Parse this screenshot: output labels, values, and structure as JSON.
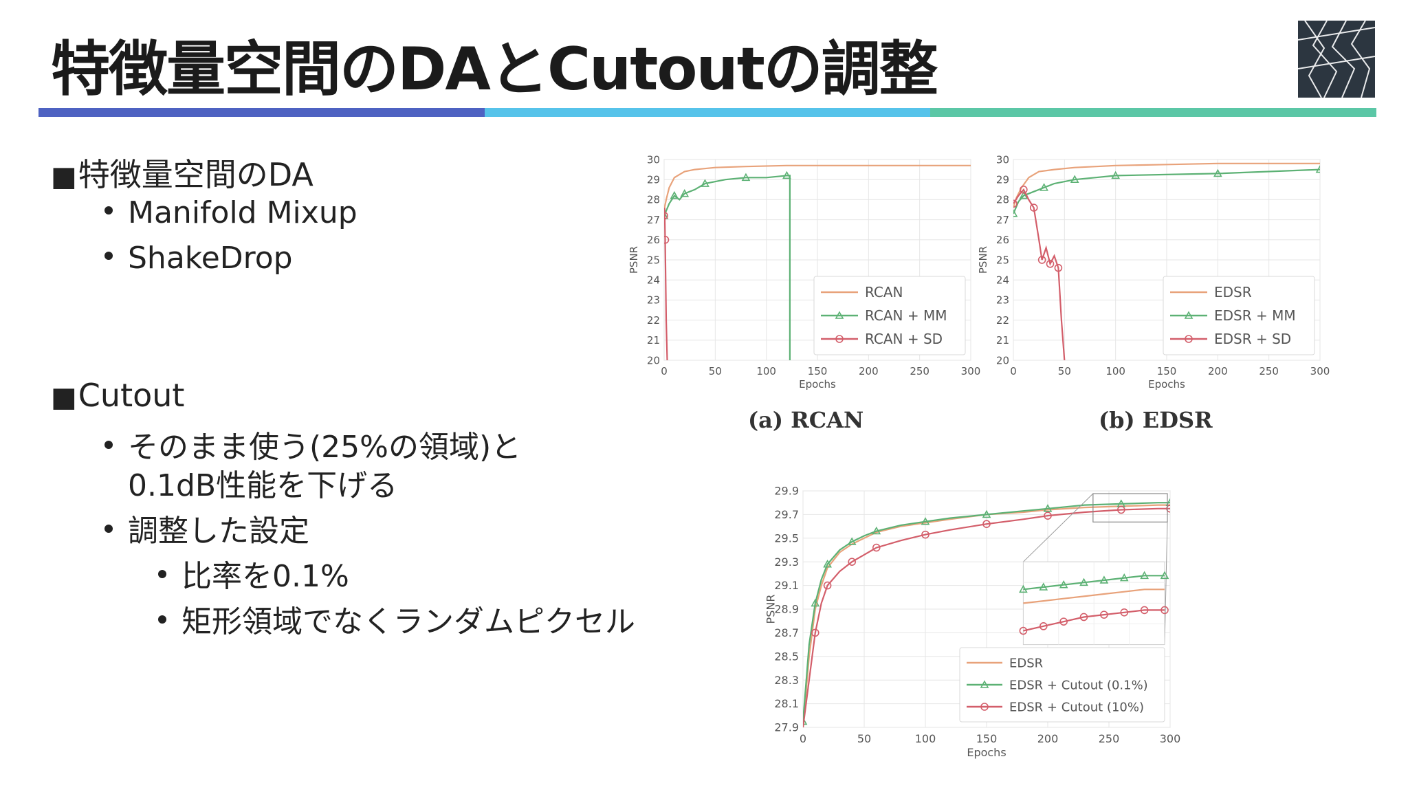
{
  "slide": {
    "title": "特徴量空間のDAとCutoutの調整",
    "colors": {
      "accent_1": "#4E62C2",
      "accent_2": "#56C3EA",
      "accent_3": "#5BC7A6",
      "logo_bg": "#2C3640"
    },
    "logo_icon": "lattice-logo-icon",
    "sections": [
      {
        "marker": "■",
        "heading": "特徴量空間のDA",
        "items": [
          {
            "text": "Manifold Mixup"
          },
          {
            "text": "ShakeDrop"
          }
        ]
      },
      {
        "marker": "■",
        "heading": "Cutout",
        "items": [
          {
            "text_line1": "そのまま使う(25%の領域)と",
            "text_line2": "0.1dB性能を下げる"
          },
          {
            "text": "調整した設定",
            "subitems": [
              {
                "text": "比率を0.1%"
              },
              {
                "text": "矩形領域でなくランダムピクセル"
              }
            ]
          }
        ]
      }
    ]
  },
  "chart_data": [
    {
      "type": "line",
      "caption": "(a) RCAN",
      "xlabel": "Epochs",
      "ylabel": "PSNR",
      "xlim": [
        0,
        300
      ],
      "ylim": [
        20,
        30
      ],
      "xticks": [
        0,
        50,
        100,
        150,
        200,
        250,
        300
      ],
      "yticks": [
        20,
        21,
        22,
        23,
        24,
        25,
        26,
        27,
        28,
        29,
        30
      ],
      "grid": true,
      "legend_position": "lower right",
      "series": [
        {
          "name": "RCAN",
          "color": "#E8A27A",
          "marker": "none",
          "x": [
            0,
            2,
            5,
            10,
            20,
            30,
            50,
            80,
            120,
            200,
            300
          ],
          "y": [
            27.5,
            28.0,
            28.6,
            29.1,
            29.4,
            29.5,
            29.6,
            29.65,
            29.7,
            29.7,
            29.7
          ]
        },
        {
          "name": "RCAN + MM",
          "color": "#5CB174",
          "marker": "triangle",
          "x": [
            0,
            5,
            10,
            15,
            20,
            30,
            40,
            60,
            80,
            100,
            120,
            123,
            123
          ],
          "y": [
            27.2,
            27.8,
            28.2,
            28.0,
            28.3,
            28.5,
            28.8,
            29.0,
            29.1,
            29.1,
            29.2,
            29.2,
            20
          ]
        },
        {
          "name": "RCAN + SD",
          "color": "#D35E6A",
          "marker": "circle",
          "x": [
            0,
            0.5,
            1,
            2,
            3
          ],
          "y": [
            27.2,
            27.6,
            26.0,
            22.0,
            20
          ]
        }
      ]
    },
    {
      "type": "line",
      "caption": "(b) EDSR",
      "xlabel": "Epochs",
      "ylabel": "PSNR",
      "xlim": [
        0,
        300
      ],
      "ylim": [
        20,
        30
      ],
      "xticks": [
        0,
        50,
        100,
        150,
        200,
        250,
        300
      ],
      "yticks": [
        20,
        21,
        22,
        23,
        24,
        25,
        26,
        27,
        28,
        29,
        30
      ],
      "grid": true,
      "legend_position": "lower right",
      "series": [
        {
          "name": "EDSR",
          "color": "#E8A27A",
          "marker": "none",
          "x": [
            0,
            3,
            8,
            15,
            25,
            40,
            60,
            100,
            150,
            200,
            250,
            300
          ],
          "y": [
            27.6,
            28.1,
            28.6,
            29.1,
            29.4,
            29.5,
            29.6,
            29.7,
            29.75,
            29.8,
            29.8,
            29.8
          ]
        },
        {
          "name": "EDSR + MM",
          "color": "#5CB174",
          "marker": "triangle",
          "x": [
            0,
            5,
            10,
            20,
            30,
            40,
            60,
            80,
            100,
            150,
            200,
            250,
            300
          ],
          "y": [
            27.3,
            27.9,
            28.2,
            28.4,
            28.6,
            28.8,
            29.0,
            29.1,
            29.2,
            29.25,
            29.3,
            29.4,
            29.5
          ]
        },
        {
          "name": "EDSR + SD",
          "color": "#D35E6A",
          "marker": "circle",
          "x": [
            0,
            5,
            10,
            15,
            20,
            25,
            28,
            32,
            36,
            40,
            44,
            47,
            50
          ],
          "y": [
            27.8,
            28.2,
            28.5,
            28.0,
            27.6,
            26.0,
            25.0,
            25.6,
            24.8,
            25.2,
            24.6,
            22.0,
            20
          ]
        }
      ]
    },
    {
      "type": "line",
      "xlabel": "Epochs",
      "ylabel": "PSNR",
      "xlim": [
        0,
        300
      ],
      "ylim": [
        27.9,
        29.9
      ],
      "xticks": [
        0,
        50,
        100,
        150,
        200,
        250,
        300
      ],
      "yticks": [
        "27.9",
        "28.1",
        "28.3",
        "28.5",
        "28.7",
        "28.9",
        "29.1",
        "29.3",
        "29.5",
        "29.7",
        "29.9"
      ],
      "grid": true,
      "legend_position": "lower right",
      "inset": true,
      "series": [
        {
          "name": "EDSR",
          "color": "#E8A27A",
          "marker": "none",
          "x": [
            0,
            5,
            10,
            15,
            20,
            30,
            40,
            50,
            60,
            80,
            100,
            120,
            150,
            180,
            200,
            230,
            260,
            290,
            300
          ],
          "y": [
            27.9,
            28.5,
            28.9,
            29.1,
            29.25,
            29.38,
            29.45,
            29.5,
            29.55,
            29.6,
            29.63,
            29.66,
            29.7,
            29.72,
            29.74,
            29.76,
            29.77,
            29.78,
            29.78
          ]
        },
        {
          "name": "EDSR + Cutout (0.1%)",
          "color": "#5CB174",
          "marker": "triangle",
          "x": [
            0,
            5,
            10,
            15,
            20,
            30,
            40,
            50,
            60,
            80,
            100,
            120,
            150,
            180,
            200,
            230,
            260,
            290,
            300
          ],
          "y": [
            27.95,
            28.6,
            28.95,
            29.15,
            29.28,
            29.4,
            29.47,
            29.52,
            29.56,
            29.61,
            29.64,
            29.67,
            29.7,
            29.73,
            29.75,
            29.78,
            29.79,
            29.8,
            29.8
          ]
        },
        {
          "name": "EDSR + Cutout (10%)",
          "color": "#D35E6A",
          "marker": "circle",
          "x": [
            0,
            5,
            10,
            15,
            20,
            30,
            40,
            50,
            60,
            80,
            100,
            120,
            150,
            180,
            200,
            230,
            260,
            290,
            300
          ],
          "y": [
            27.9,
            28.3,
            28.7,
            28.95,
            29.1,
            29.22,
            29.3,
            29.36,
            29.42,
            29.48,
            29.53,
            29.57,
            29.62,
            29.66,
            29.69,
            29.72,
            29.74,
            29.75,
            29.75
          ]
        }
      ]
    }
  ]
}
